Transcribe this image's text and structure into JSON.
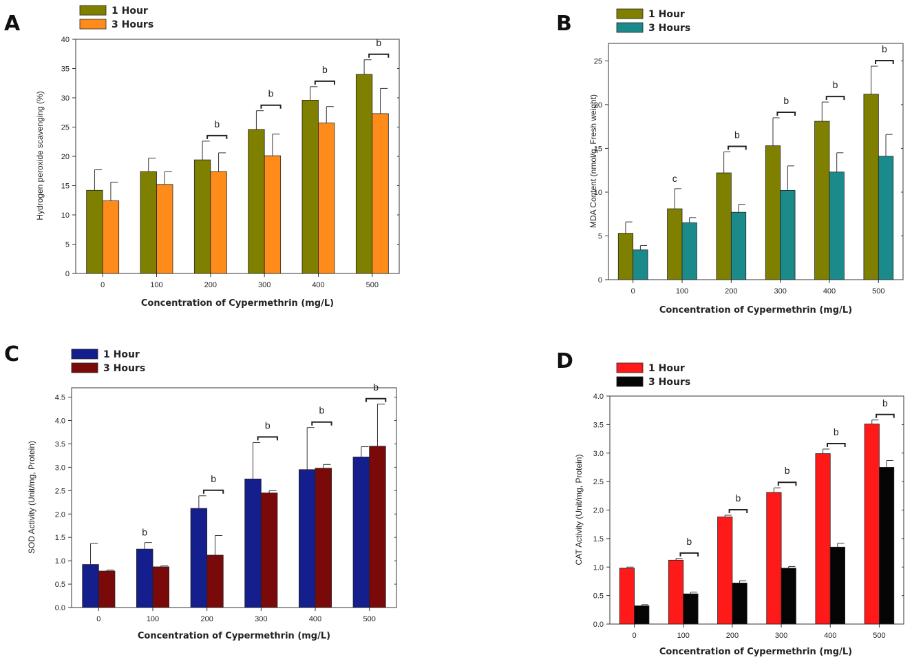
{
  "chart_data": [
    {
      "panel": "A",
      "type": "bar",
      "title": "",
      "categories": [
        "0",
        "100",
        "200",
        "300",
        "400",
        "500"
      ],
      "xlabel": "Concentration of Cypermethrin (mg/L)",
      "ylabel": "Hydrogen peroxide scavenging (%)",
      "ylim": [
        0,
        40
      ],
      "yticks": [
        "0",
        "5",
        "10",
        "15",
        "20",
        "25",
        "30",
        "35",
        "40"
      ],
      "grid": false,
      "legend": "top-left",
      "series": [
        {
          "name": "1 Hour",
          "color": "#808000",
          "values": [
            14.2,
            17.4,
            19.4,
            24.6,
            29.6,
            34.0
          ],
          "errors": [
            3.5,
            2.3,
            3.2,
            3.2,
            2.3,
            2.5
          ]
        },
        {
          "name": "3 Hours",
          "color": "#ff8c1a",
          "values": [
            12.4,
            15.2,
            17.4,
            20.1,
            25.7,
            27.3
          ],
          "errors": [
            3.2,
            2.2,
            3.2,
            3.7,
            2.8,
            4.3
          ]
        }
      ],
      "annotations": [
        {
          "category": "200",
          "text": "b"
        },
        {
          "category": "300",
          "text": "b"
        },
        {
          "category": "400",
          "text": "b"
        },
        {
          "category": "500",
          "text": "b"
        }
      ]
    },
    {
      "panel": "B",
      "type": "bar",
      "title": "",
      "categories": [
        "0",
        "100",
        "200",
        "300",
        "400",
        "500"
      ],
      "xlabel": "Concentration of Cypermethrin (mg/L)",
      "ylabel": "MDA Content (nmol/g, Fresh weight)",
      "ylim": [
        0,
        27
      ],
      "yticks": [
        "0",
        "5",
        "10",
        "15",
        "20",
        "25"
      ],
      "grid": false,
      "legend": "top-left",
      "series": [
        {
          "name": "1 Hour",
          "color": "#808000",
          "values": [
            5.3,
            8.1,
            12.2,
            15.3,
            18.1,
            21.2
          ],
          "errors": [
            1.3,
            2.3,
            2.4,
            3.2,
            2.2,
            3.2
          ]
        },
        {
          "name": "3 Hours",
          "color": "#1a8a8a",
          "values": [
            3.4,
            6.5,
            7.7,
            10.2,
            12.3,
            14.1
          ],
          "errors": [
            0.5,
            0.6,
            0.9,
            2.8,
            2.2,
            2.5
          ]
        }
      ],
      "annotations": [
        {
          "category": "100",
          "text": "c",
          "bracket": false
        },
        {
          "category": "200",
          "text": "b"
        },
        {
          "category": "300",
          "text": "b"
        },
        {
          "category": "400",
          "text": "b"
        },
        {
          "category": "500",
          "text": "b"
        }
      ]
    },
    {
      "panel": "C",
      "type": "bar",
      "title": "",
      "categories": [
        "0",
        "100",
        "200",
        "300",
        "400",
        "500"
      ],
      "xlabel": "Concentration of Cypermethrin (mg/L)",
      "ylabel": "SOD Activity (Unit/mg, Protein)",
      "ylim": [
        0,
        4.7
      ],
      "yticks": [
        "0.0",
        "0.5",
        "1.0",
        "1.5",
        "2.0",
        "2.5",
        "3.0",
        "3.5",
        "4.0",
        "4.5"
      ],
      "grid": false,
      "legend": "top-left",
      "series": [
        {
          "name": "1 Hour",
          "color": "#141e8c",
          "values": [
            0.92,
            1.25,
            2.12,
            2.75,
            2.95,
            3.22
          ],
          "errors": [
            0.45,
            0.14,
            0.27,
            0.78,
            0.9,
            0.22
          ]
        },
        {
          "name": "3 Hours",
          "color": "#7a0a0a",
          "values": [
            0.78,
            0.87,
            1.12,
            2.45,
            2.98,
            3.45
          ],
          "errors": [
            0.02,
            0.02,
            0.42,
            0.05,
            0.08,
            0.9
          ]
        }
      ],
      "annotations": [
        {
          "category": "100",
          "text": "b",
          "bracket": false
        },
        {
          "category": "200",
          "text": "b"
        },
        {
          "category": "300",
          "text": "b"
        },
        {
          "category": "400",
          "text": "b"
        },
        {
          "category": "500",
          "text": "b"
        }
      ]
    },
    {
      "panel": "D",
      "type": "bar",
      "title": "",
      "categories": [
        "0",
        "100",
        "200",
        "300",
        "400",
        "500"
      ],
      "xlabel": "Concentration of Cypermethrin (mg/L)",
      "ylabel": "CAT Activity (Unit/mg, Protein)",
      "ylim": [
        0,
        4.0
      ],
      "yticks": [
        "0.0",
        "0.5",
        "1.0",
        "1.5",
        "2.0",
        "2.5",
        "3.0",
        "3.5",
        "4.0"
      ],
      "grid": false,
      "legend": "top-left",
      "series": [
        {
          "name": "1 Hour",
          "color": "#ff1a1a",
          "values": [
            0.98,
            1.12,
            1.88,
            2.31,
            2.99,
            3.51
          ],
          "errors": [
            0.02,
            0.03,
            0.03,
            0.08,
            0.08,
            0.07
          ]
        },
        {
          "name": "3 Hours",
          "color": "#050505",
          "values": [
            0.32,
            0.53,
            0.72,
            0.98,
            1.35,
            2.75
          ],
          "errors": [
            0.02,
            0.03,
            0.04,
            0.03,
            0.07,
            0.12
          ]
        }
      ],
      "annotations": [
        {
          "category": "100",
          "text": "b"
        },
        {
          "category": "200",
          "text": "b"
        },
        {
          "category": "300",
          "text": "b"
        },
        {
          "category": "400",
          "text": "b"
        },
        {
          "category": "500",
          "text": "b"
        }
      ]
    }
  ]
}
